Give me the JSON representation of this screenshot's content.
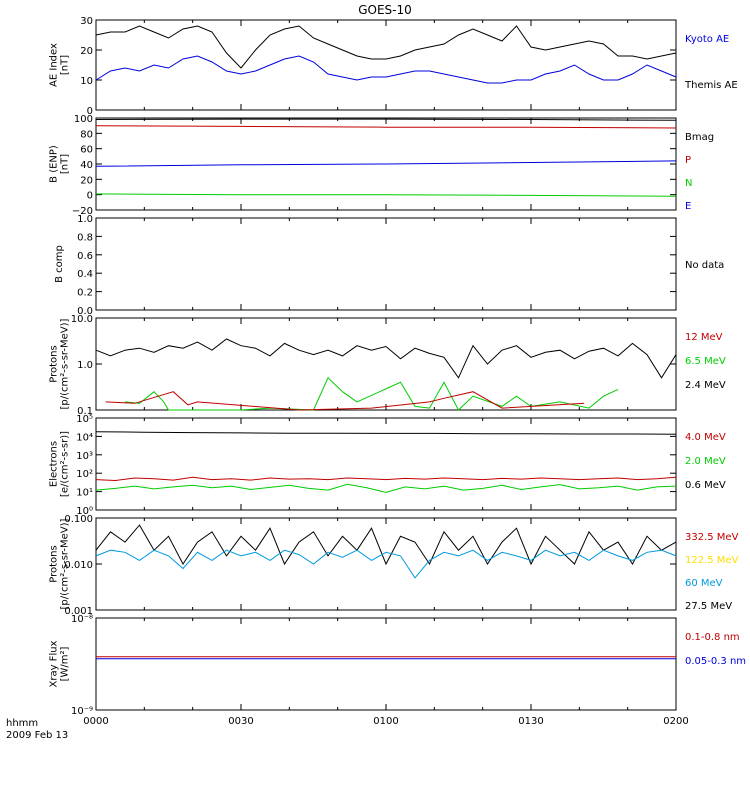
{
  "title": "GOES-10",
  "footer": {
    "time_label": "hhmm",
    "date_label": "2009 Feb 13"
  },
  "x_axis": {
    "range": [
      "0000",
      "0200"
    ],
    "ticks": [
      "0000",
      "0030",
      "0100",
      "0130",
      "0200"
    ]
  },
  "colors": {
    "black": "#000000",
    "red": "#c00000",
    "blue": "#0000dd",
    "green": "#00cc00",
    "cyan": "#0099dd",
    "yellow": "#ffdd00"
  },
  "chart_data": [
    {
      "id": "ae",
      "type": "line",
      "ylabel": [
        "AE Index",
        "[nT]"
      ],
      "ylim": [
        0,
        30
      ],
      "yscale": "linear",
      "yticks": [
        "0",
        "10",
        "20",
        "30"
      ],
      "ytick_values": [
        0,
        10,
        20,
        30
      ],
      "legend": [
        {
          "label": "Kyoto AE",
          "color": "#0000dd"
        },
        {
          "label": "Themis AE",
          "color": "#000000"
        }
      ],
      "series": [
        {
          "name": "Themis AE",
          "color": "#000000",
          "x_minutes": [
            0,
            3,
            6,
            9,
            12,
            15,
            18,
            21,
            24,
            27,
            30,
            33,
            36,
            39,
            42,
            45,
            48,
            51,
            54,
            57,
            60,
            63,
            66,
            69,
            72,
            75,
            78,
            81,
            84,
            87,
            90,
            93,
            96,
            99,
            102,
            105,
            108,
            111,
            114,
            117,
            120
          ],
          "values": [
            25,
            26,
            26,
            28,
            26,
            24,
            27,
            28,
            26,
            19,
            14,
            20,
            25,
            27,
            28,
            24,
            22,
            20,
            18,
            17,
            17,
            18,
            20,
            21,
            22,
            25,
            27,
            25,
            23,
            28,
            21,
            20,
            21,
            22,
            23,
            22,
            18,
            18,
            17,
            18,
            19
          ]
        },
        {
          "name": "Kyoto AE",
          "color": "#0000dd",
          "x_minutes": [
            0,
            3,
            6,
            9,
            12,
            15,
            18,
            21,
            24,
            27,
            30,
            33,
            36,
            39,
            42,
            45,
            48,
            51,
            54,
            57,
            60,
            63,
            66,
            69,
            72,
            75,
            78,
            81,
            84,
            87,
            90,
            93,
            96,
            99,
            102,
            105,
            108,
            111,
            114,
            117,
            120
          ],
          "values": [
            10,
            13,
            14,
            13,
            15,
            14,
            17,
            18,
            16,
            13,
            12,
            13,
            15,
            17,
            18,
            16,
            12,
            11,
            10,
            11,
            11,
            12,
            13,
            13,
            12,
            11,
            10,
            9,
            9,
            10,
            10,
            12,
            13,
            15,
            12,
            10,
            10,
            12,
            15,
            13,
            11
          ]
        }
      ]
    },
    {
      "id": "bfield",
      "type": "line",
      "ylabel": [
        "B (ENP)",
        "[nT]"
      ],
      "ylim": [
        -20,
        100
      ],
      "yscale": "linear",
      "yticks": [
        "−20",
        "0",
        "20",
        "40",
        "60",
        "80",
        "100"
      ],
      "ytick_values": [
        -20,
        0,
        20,
        40,
        60,
        80,
        100
      ],
      "legend": [
        {
          "label": "Bmag",
          "color": "#000000"
        },
        {
          "label": "P",
          "color": "#c00000"
        },
        {
          "label": "N",
          "color": "#00cc00"
        },
        {
          "label": "E",
          "color": "#0000dd"
        }
      ],
      "series": [
        {
          "name": "Bmag",
          "color": "#000000",
          "x_minutes": [
            0,
            30,
            60,
            90,
            120
          ],
          "values": [
            98,
            98.5,
            98.5,
            98,
            97
          ]
        },
        {
          "name": "P",
          "color": "#c00000",
          "x_minutes": [
            0,
            30,
            60,
            90,
            120
          ],
          "values": [
            90,
            89,
            88,
            88,
            87
          ]
        },
        {
          "name": "E",
          "color": "#0000dd",
          "x_minutes": [
            0,
            30,
            60,
            90,
            120
          ],
          "values": [
            37,
            39,
            40,
            42,
            44
          ]
        },
        {
          "name": "N",
          "color": "#00cc00",
          "x_minutes": [
            0,
            30,
            60,
            90,
            120
          ],
          "values": [
            1,
            0,
            0,
            -1,
            -2
          ]
        }
      ]
    },
    {
      "id": "bcomp",
      "type": "line",
      "ylabel": [
        "B comp"
      ],
      "ylim": [
        0,
        1
      ],
      "yscale": "linear",
      "yticks": [
        "0.0",
        "0.2",
        "0.4",
        "0.6",
        "0.8",
        "1.0"
      ],
      "ytick_values": [
        0,
        0.2,
        0.4,
        0.6,
        0.8,
        1.0
      ],
      "legend": [
        {
          "label": "No data",
          "color": "#000000"
        }
      ],
      "series": []
    },
    {
      "id": "protons",
      "type": "line",
      "ylabel": [
        "Protons",
        "[p/(cm²-s-sr-MeV)]"
      ],
      "ylim": [
        0.1,
        10
      ],
      "yscale": "log",
      "yticks": [
        "0.1",
        "1.0",
        "10.0"
      ],
      "ytick_values": [
        0.1,
        1.0,
        10.0
      ],
      "legend": [
        {
          "label": "12 MeV",
          "color": "#c00000"
        },
        {
          "label": "6.5 MeV",
          "color": "#00cc00"
        },
        {
          "label": "2.4 MeV",
          "color": "#000000"
        }
      ],
      "series": [
        {
          "name": "2.4 MeV",
          "color": "#000000",
          "x_minutes": [
            0,
            3,
            6,
            9,
            12,
            15,
            18,
            21,
            24,
            27,
            30,
            33,
            36,
            39,
            42,
            45,
            48,
            51,
            54,
            57,
            60,
            63,
            66,
            69,
            72,
            75,
            78,
            81,
            84,
            87,
            90,
            93,
            96,
            99,
            102,
            105,
            108,
            111,
            114,
            117,
            120
          ],
          "values": [
            2.0,
            1.5,
            2.0,
            2.2,
            1.8,
            2.5,
            2.2,
            3.0,
            2.0,
            3.5,
            2.5,
            2.2,
            1.5,
            2.8,
            2.0,
            1.6,
            2.0,
            1.5,
            2.5,
            2.0,
            2.4,
            1.3,
            2.2,
            1.7,
            1.4,
            0.5,
            2.5,
            1.0,
            2.0,
            2.5,
            1.4,
            1.8,
            2.0,
            1.3,
            1.9,
            2.2,
            1.5,
            2.8,
            1.6,
            0.5,
            1.6
          ]
        },
        {
          "name": "6.5 MeV",
          "color": "#00cc00",
          "x_minutes": [
            6,
            9,
            12,
            14,
            15,
            30,
            36,
            45,
            48,
            51,
            54,
            63,
            66,
            69,
            72,
            75,
            78,
            84,
            87,
            90,
            96,
            102,
            105,
            108
          ],
          "values": [
            0.15,
            0.14,
            0.25,
            0.15,
            0.1,
            0.1,
            0.11,
            0.1,
            0.5,
            0.25,
            0.15,
            0.4,
            0.12,
            0.11,
            0.4,
            0.1,
            0.2,
            0.12,
            0.2,
            0.12,
            0.15,
            0.11,
            0.2,
            0.28
          ]
        },
        {
          "name": "12 MeV",
          "color": "#c00000",
          "x_minutes": [
            2,
            8,
            16,
            19,
            21,
            42,
            57,
            69,
            72,
            78,
            84,
            101
          ],
          "values": [
            0.15,
            0.14,
            0.25,
            0.13,
            0.15,
            0.1,
            0.11,
            0.15,
            0.18,
            0.25,
            0.11,
            0.14
          ]
        }
      ]
    },
    {
      "id": "electrons",
      "type": "line",
      "ylabel": [
        "Electrons",
        "[e/(cm²-s-sr)]"
      ],
      "ylim": [
        1,
        100000
      ],
      "yscale": "log",
      "yticks": [
        "10⁰",
        "10¹",
        "10²",
        "10³",
        "10⁴",
        "10⁵"
      ],
      "ytick_values": [
        1,
        10,
        100,
        1000,
        10000,
        100000
      ],
      "legend": [
        {
          "label": "4.0 MeV",
          "color": "#c00000"
        },
        {
          "label": "2.0 MeV",
          "color": "#00cc00"
        },
        {
          "label": "0.6 MeV",
          "color": "#000000"
        }
      ],
      "series": [
        {
          "name": "0.6 MeV",
          "color": "#000000",
          "x_minutes": [
            0,
            10,
            20,
            30,
            40,
            50,
            60,
            70,
            80,
            90,
            100,
            110,
            120
          ],
          "values": [
            18000,
            17000,
            16000,
            15500,
            15000,
            15000,
            14500,
            14500,
            14000,
            14000,
            13500,
            13500,
            13000
          ]
        },
        {
          "name": "4.0 MeV",
          "color": "#c00000",
          "x_minutes": [
            0,
            4,
            8,
            12,
            16,
            20,
            24,
            28,
            32,
            36,
            40,
            44,
            48,
            52,
            56,
            60,
            64,
            68,
            72,
            76,
            80,
            84,
            88,
            92,
            96,
            100,
            104,
            108,
            112,
            116,
            120
          ],
          "values": [
            45,
            40,
            55,
            50,
            42,
            60,
            45,
            50,
            42,
            55,
            48,
            50,
            45,
            55,
            50,
            45,
            52,
            48,
            55,
            50,
            45,
            52,
            48,
            55,
            50,
            45,
            50,
            55,
            45,
            50,
            60
          ]
        },
        {
          "name": "2.0 MeV",
          "color": "#00cc00",
          "x_minutes": [
            0,
            4,
            8,
            12,
            16,
            20,
            24,
            28,
            32,
            36,
            40,
            44,
            48,
            52,
            56,
            60,
            64,
            68,
            72,
            76,
            80,
            84,
            88,
            92,
            96,
            100,
            104,
            108,
            112,
            116,
            120
          ],
          "values": [
            12,
            15,
            20,
            14,
            18,
            22,
            16,
            20,
            13,
            17,
            22,
            15,
            12,
            25,
            16,
            9,
            18,
            14,
            20,
            12,
            15,
            22,
            13,
            18,
            24,
            14,
            16,
            20,
            12,
            18,
            20
          ]
        }
      ]
    },
    {
      "id": "hiprotons",
      "type": "line",
      "ylabel": [
        "Protons",
        "[p/(cm²-s-sr-MeV)]"
      ],
      "ylim": [
        0.001,
        0.1
      ],
      "yscale": "log",
      "yticks": [
        "0.001",
        "0.010",
        "0.100"
      ],
      "ytick_values": [
        0.001,
        0.01,
        0.1
      ],
      "legend": [
        {
          "label": "332.5 MeV",
          "color": "#c00000"
        },
        {
          "label": "122.5 MeV",
          "color": "#ffdd00"
        },
        {
          "label": "60 MeV",
          "color": "#0099dd"
        },
        {
          "label": "27.5 MeV",
          "color": "#000000"
        }
      ],
      "series": [
        {
          "name": "27.5 MeV",
          "color": "#000000",
          "x_minutes": [
            0,
            3,
            6,
            9,
            12,
            15,
            18,
            21,
            24,
            27,
            30,
            33,
            36,
            39,
            42,
            45,
            48,
            51,
            54,
            57,
            60,
            63,
            66,
            69,
            72,
            75,
            78,
            81,
            84,
            87,
            90,
            93,
            96,
            99,
            102,
            105,
            108,
            111,
            114,
            117,
            120
          ],
          "values": [
            0.02,
            0.05,
            0.03,
            0.07,
            0.02,
            0.04,
            0.01,
            0.03,
            0.05,
            0.015,
            0.04,
            0.02,
            0.06,
            0.01,
            0.03,
            0.05,
            0.015,
            0.04,
            0.02,
            0.06,
            0.01,
            0.04,
            0.03,
            0.01,
            0.05,
            0.02,
            0.04,
            0.01,
            0.03,
            0.06,
            0.01,
            0.04,
            0.02,
            0.01,
            0.05,
            0.02,
            0.03,
            0.01,
            0.04,
            0.02,
            0.03
          ]
        },
        {
          "name": "60 MeV",
          "color": "#0099dd",
          "x_minutes": [
            0,
            3,
            6,
            9,
            12,
            15,
            18,
            21,
            24,
            27,
            30,
            33,
            36,
            39,
            42,
            45,
            48,
            51,
            54,
            57,
            60,
            63,
            66,
            69,
            72,
            75,
            78,
            81,
            84,
            87,
            90,
            93,
            96,
            99,
            102,
            105,
            108,
            111,
            114,
            117,
            120
          ],
          "values": [
            0.015,
            0.02,
            0.018,
            0.012,
            0.02,
            0.015,
            0.008,
            0.018,
            0.012,
            0.02,
            0.015,
            0.018,
            0.012,
            0.02,
            0.016,
            0.01,
            0.018,
            0.014,
            0.02,
            0.012,
            0.018,
            0.015,
            0.005,
            0.012,
            0.018,
            0.015,
            0.02,
            0.012,
            0.018,
            0.015,
            0.012,
            0.02,
            0.015,
            0.018,
            0.012,
            0.02,
            0.015,
            0.012,
            0.018,
            0.02,
            0.015
          ]
        }
      ]
    },
    {
      "id": "xray",
      "type": "line",
      "ylabel": [
        "Xray Flux",
        "[W/m²]"
      ],
      "ylim": [
        1e-09,
        1e-08
      ],
      "yscale": "log",
      "yticks": [
        "10⁻⁹",
        "10⁻⁸"
      ],
      "ytick_values": [
        1e-09,
        1e-08
      ],
      "legend": [
        {
          "label": "0.1-0.8 nm",
          "color": "#c00000"
        },
        {
          "label": "0.05-0.3 nm",
          "color": "#0000dd"
        }
      ],
      "series": [
        {
          "name": "0.1-0.8 nm",
          "color": "#c00000",
          "x_minutes": [
            0,
            30,
            60,
            90,
            120
          ],
          "values": [
            3.8e-09,
            3.8e-09,
            3.8e-09,
            3.8e-09,
            3.8e-09
          ]
        },
        {
          "name": "0.05-0.3 nm",
          "color": "#0000dd",
          "x_minutes": [
            0,
            30,
            60,
            90,
            120
          ],
          "values": [
            3.6e-09,
            3.6e-09,
            3.6e-09,
            3.6e-09,
            3.6e-09
          ]
        }
      ]
    }
  ]
}
